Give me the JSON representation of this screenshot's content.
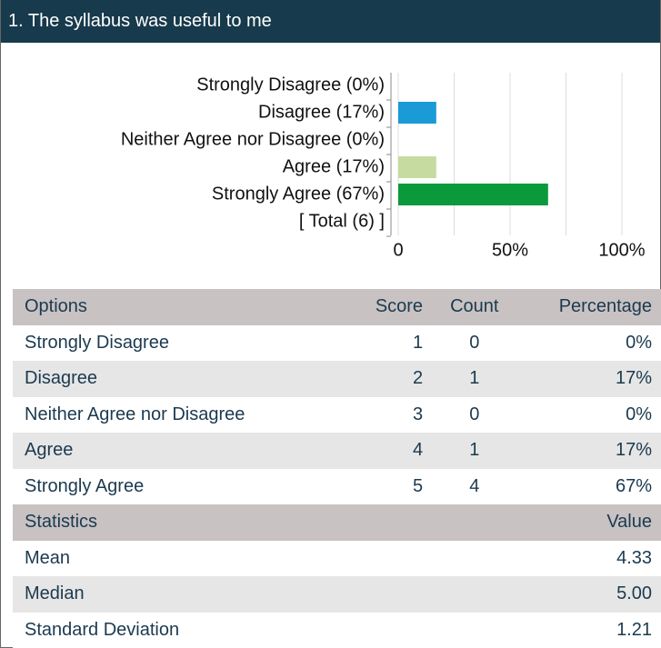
{
  "title": "1. The syllabus was useful to me",
  "chart_data": {
    "type": "barh",
    "categories": [
      "Strongly Disagree (0%)",
      "Disagree (17%)",
      "Neither Agree nor Disagree (0%)",
      "Agree (17%)",
      "Strongly Agree (67%)",
      "[ Total (6) ]"
    ],
    "values": [
      0,
      17,
      0,
      17,
      67,
      null
    ],
    "colors": [
      "#1a9ad6",
      "#1a9ad6",
      "#c5dba0",
      "#c5dba0",
      "#0a9a3c",
      "#0a9a3c"
    ],
    "xlim": [
      0,
      100
    ],
    "xticks": [
      0,
      {
        "value": 50,
        "label": "50%"
      },
      {
        "value": 100,
        "label": "100%"
      }
    ],
    "minor_xticks": [
      25,
      75
    ],
    "grid": true
  },
  "table": {
    "header": [
      "Options",
      "Score",
      "Count",
      "Percentage"
    ],
    "rows": [
      [
        "Strongly Disagree",
        "1",
        "0",
        "0%"
      ],
      [
        "Disagree",
        "2",
        "1",
        "17%"
      ],
      [
        "Neither Agree nor Disagree",
        "3",
        "0",
        "0%"
      ],
      [
        "Agree",
        "4",
        "1",
        "17%"
      ],
      [
        "Strongly Agree",
        "5",
        "4",
        "67%"
      ]
    ]
  },
  "statistics": {
    "header": [
      "Statistics",
      "Value"
    ],
    "rows": [
      [
        "Mean",
        "4.33"
      ],
      [
        "Median",
        "5.00"
      ],
      [
        "Standard Deviation",
        "1.21"
      ]
    ]
  }
}
